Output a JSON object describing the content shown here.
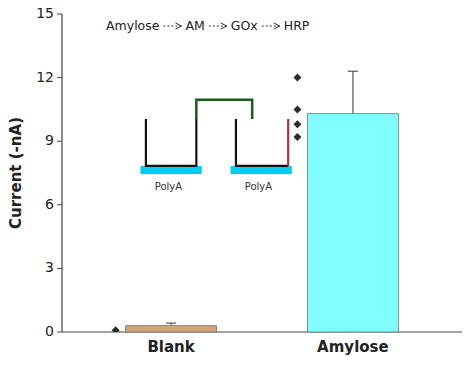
{
  "chart_data": {
    "type": "bar",
    "categories": [
      "Blank",
      "Amylose"
    ],
    "values": [
      0.3,
      10.3
    ],
    "colors": [
      "#d4a474",
      "#7fffff"
    ],
    "error_minus": [
      0.12,
      1.6
    ],
    "error_plus": [
      0.12,
      2.0
    ],
    "series": [
      {
        "type": "scatter",
        "marker": "diamond",
        "color": "#2b2b2b",
        "values": [
          [
            0.08
          ],
          [
            12.0,
            10.5,
            9.8,
            9.2
          ]
        ]
      }
    ],
    "ylabel": "Current (-nA)",
    "ylim": [
      0,
      15
    ],
    "yticks": [
      0,
      3,
      6,
      9,
      12,
      15
    ],
    "grid": false,
    "annotations": [
      "Amylose",
      "AM",
      "GOx",
      "HRP"
    ],
    "inset_labels": [
      "PolyA",
      "PolyA"
    ]
  }
}
